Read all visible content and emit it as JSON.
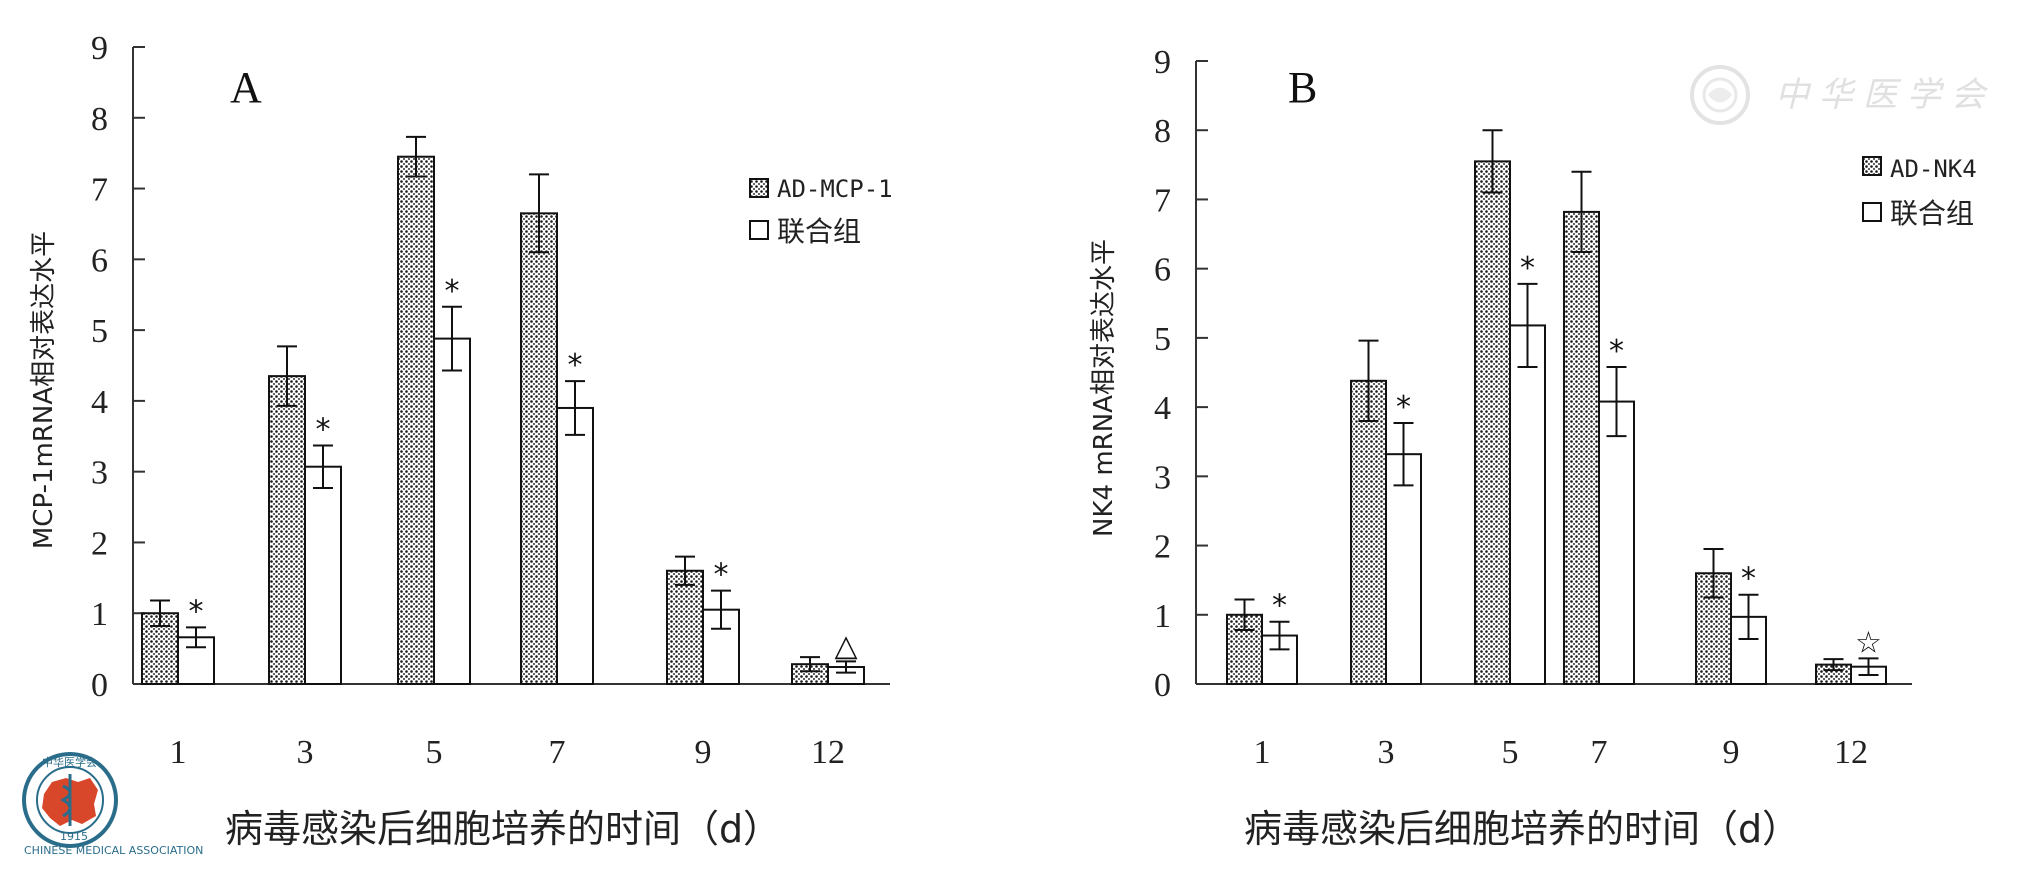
{
  "chart_data": [
    {
      "type": "bar",
      "panel_label": "A",
      "ylabel": "MCP-1mRNA相对表达水平",
      "xlabel": "病毒感染后细胞培养的时间（d）",
      "ylim": [
        0,
        9
      ],
      "yticks": [
        "0",
        "1",
        "2",
        "3",
        "4",
        "5",
        "6",
        "7",
        "8",
        "9"
      ],
      "categories": [
        "1",
        "3",
        "5",
        "7",
        "9",
        "12"
      ],
      "legend_position": "top-right",
      "series": [
        {
          "name": "AD-MCP-1",
          "fill": "dotted",
          "values": [
            1.0,
            4.35,
            7.45,
            6.65,
            1.6,
            0.28
          ],
          "errors": [
            0.18,
            0.42,
            0.28,
            0.55,
            0.2,
            0.1
          ]
        },
        {
          "name": "联合组",
          "fill": "open",
          "values": [
            0.66,
            3.07,
            4.88,
            3.9,
            1.05,
            0.24
          ],
          "errors": [
            0.14,
            0.3,
            0.45,
            0.38,
            0.27,
            0.08
          ]
        }
      ],
      "annotations": [
        "*",
        "*",
        "*",
        "*",
        "*",
        "△"
      ]
    },
    {
      "type": "bar",
      "panel_label": "B",
      "ylabel": "NK4 mRNA相对表达水平",
      "xlabel": "病毒感染后细胞培养的时间（d）",
      "ylim": [
        0,
        9
      ],
      "yticks": [
        "0",
        "1",
        "2",
        "3",
        "4",
        "5",
        "6",
        "7",
        "8",
        "9"
      ],
      "categories": [
        "1",
        "3",
        "5",
        "7",
        "9",
        "12"
      ],
      "legend_position": "top-right",
      "series": [
        {
          "name": "AD-NK4",
          "fill": "dotted",
          "values": [
            1.0,
            4.38,
            7.55,
            6.82,
            1.6,
            0.28
          ],
          "errors": [
            0.22,
            0.58,
            0.45,
            0.58,
            0.35,
            0.08
          ]
        },
        {
          "name": "联合组",
          "fill": "open",
          "values": [
            0.7,
            3.32,
            5.18,
            4.08,
            0.97,
            0.25
          ],
          "errors": [
            0.2,
            0.45,
            0.6,
            0.5,
            0.32,
            0.12
          ]
        }
      ],
      "annotations": [
        "*",
        "*",
        "*",
        "*",
        "*",
        "☆"
      ]
    }
  ],
  "watermark": {
    "text": "中华医学会",
    "color": "#e0e0e0"
  },
  "logo": {
    "top_text": "中华医学会",
    "bottom_text": "CHINESE MEDICAL ASSOCIATION",
    "year": "1915",
    "colors": {
      "ring": "#2a6d8a",
      "map": "#d9472b"
    }
  }
}
